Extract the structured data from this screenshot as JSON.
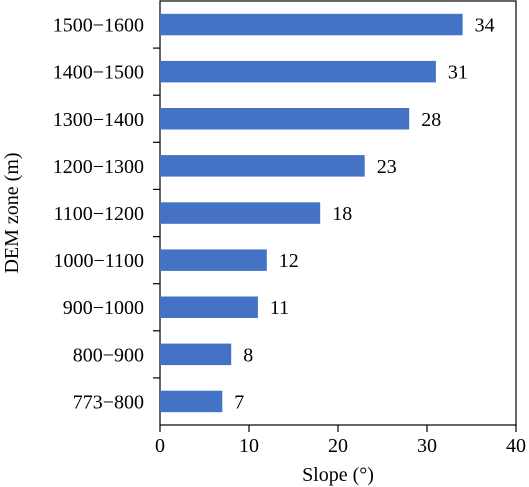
{
  "chart_data": {
    "type": "bar",
    "orientation": "horizontal",
    "categories": [
      "773−800",
      "800−900",
      "900−1000",
      "1000−1100",
      "1100−1200",
      "1200−1300",
      "1300−1400",
      "1400−1500",
      "1500−1600"
    ],
    "values": [
      7,
      8,
      11,
      12,
      18,
      23,
      28,
      31,
      34
    ],
    "data_labels": [
      "7",
      "8",
      "11",
      "12",
      "18",
      "23",
      "28",
      "31",
      "34"
    ],
    "title": "",
    "xlabel": "Slope (°)",
    "ylabel": "DEM zone (m)",
    "xlim": [
      0,
      40
    ],
    "xticks": [
      "0",
      "10",
      "20",
      "30",
      "40"
    ],
    "bar_color": "#4472c4",
    "grid": false,
    "legend": "none"
  }
}
